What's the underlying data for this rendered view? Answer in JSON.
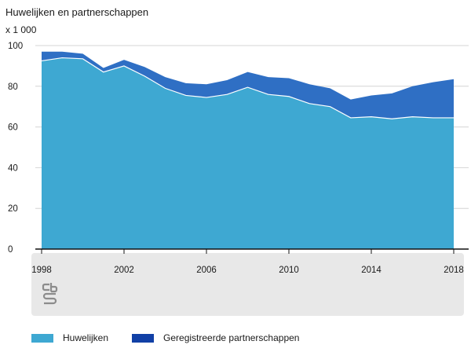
{
  "chart_data": {
    "type": "area",
    "stacked": true,
    "title": "Huwelijken en partnerschappen",
    "unit_label": "x 1 000",
    "x": [
      1998,
      1999,
      2000,
      2001,
      2002,
      2003,
      2004,
      2005,
      2006,
      2007,
      2008,
      2009,
      2010,
      2011,
      2012,
      2013,
      2014,
      2015,
      2016,
      2017,
      2018
    ],
    "x_tick_labels": [
      "1998",
      "2002",
      "2006",
      "2010",
      "2014",
      "2018"
    ],
    "y_tick_labels": [
      "0",
      "20",
      "40",
      "60",
      "80",
      "100"
    ],
    "ylim": [
      0,
      100
    ],
    "grid": true,
    "legend_position": "bottom",
    "series": [
      {
        "name": "Huwelijken",
        "color": "#3ea8d2",
        "values": [
          92.5,
          94.0,
          93.5,
          87.0,
          90.0,
          85.0,
          79.0,
          75.5,
          74.5,
          76.0,
          79.5,
          76.0,
          75.0,
          71.5,
          70.0,
          64.5,
          65.0,
          64.0,
          65.0,
          64.5,
          64.5
        ]
      },
      {
        "name": "Geregistreerde partnerschappen",
        "color": "#2f6fc4",
        "values": [
          4.5,
          3.0,
          2.5,
          2.0,
          3.0,
          4.5,
          5.5,
          6.0,
          6.5,
          7.0,
          7.5,
          8.5,
          9.0,
          9.5,
          9.0,
          9.0,
          10.5,
          12.5,
          15.0,
          17.5,
          19.0
        ]
      }
    ]
  },
  "logo": {
    "name": "cbs-logo",
    "text": "cbs"
  },
  "colors": {
    "background": "#ffffff",
    "footer": "#e8e8e8",
    "legend_partnerschappen": "#1140a6"
  }
}
